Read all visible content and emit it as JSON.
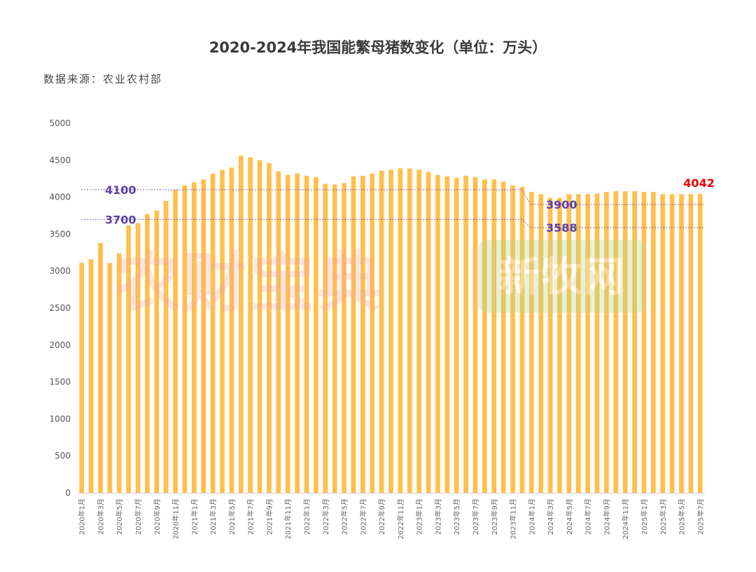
{
  "chart_data": {
    "type": "bar",
    "title": "2020-2024年我国能繁母猪数变化（单位：万头）",
    "source": "数据来源：农业农村部",
    "ylim": [
      0,
      5000
    ],
    "yticks": [
      0,
      500,
      1000,
      1500,
      2000,
      2500,
      3000,
      3500,
      4000,
      4500,
      5000
    ],
    "categories": [
      "2020年1月",
      "2020年2月",
      "2020年3月",
      "2020年4月",
      "2020年5月",
      "2020年6月",
      "2020年7月",
      "2020年8月",
      "2020年9月",
      "2020年10月",
      "2020年11月",
      "2020年12月",
      "2021年1月",
      "2021年2月",
      "2021年3月",
      "2021年4月",
      "2021年5月",
      "2021年6月",
      "2021年7月",
      "2021年8月",
      "2021年9月",
      "2021年10月",
      "2021年11月",
      "2021年12月",
      "2022年1月",
      "2022年2月",
      "2022年3月",
      "2022年4月",
      "2022年5月",
      "2022年6月",
      "2022年7月",
      "2022年8月",
      "2022年9月",
      "2022年10月",
      "2022年11月",
      "2022年12月",
      "2023年1月",
      "2023年2月",
      "2023年3月",
      "2023年4月",
      "2023年5月",
      "2023年6月",
      "2023年7月",
      "2023年8月",
      "2023年9月",
      "2023年10月",
      "2023年11月",
      "2023年12月",
      "2024年1月",
      "2024年2月",
      "2024年3月",
      "2024年4月",
      "2024年5月",
      "2024年6月",
      "2024年7月",
      "2024年8月",
      "2024年9月",
      "2024年10月",
      "2024年11月",
      "2024年12月",
      "2025年1月",
      "2025年2月",
      "2025年3月",
      "2025年4月",
      "2025年5月",
      "2025年6月",
      "2025年7月"
    ],
    "values": [
      3110,
      3160,
      3380,
      3110,
      3240,
      3620,
      3650,
      3770,
      3820,
      3950,
      4100,
      4160,
      4200,
      4240,
      4320,
      4370,
      4400,
      4560,
      4540,
      4500,
      4460,
      4350,
      4300,
      4320,
      4290,
      4270,
      4180,
      4170,
      4190,
      4280,
      4290,
      4320,
      4360,
      4370,
      4390,
      4390,
      4370,
      4340,
      4300,
      4280,
      4260,
      4290,
      4270,
      4240,
      4240,
      4210,
      4160,
      4140,
      4070,
      4040,
      3990,
      3990,
      4040,
      4040,
      4040,
      4050,
      4070,
      4080,
      4080,
      4080,
      4070,
      4070,
      4040,
      4040,
      4040,
      4040,
      4042
    ],
    "bar_color": "#ffbf4d",
    "reference_lines": [
      {
        "label": "4100",
        "value": 4100,
        "color": "#5b3fa6"
      },
      {
        "label": "3700",
        "value": 3700,
        "color": "#5b3fa6"
      },
      {
        "label": "3900",
        "value": 3900,
        "color": "#5b3fa6"
      },
      {
        "label": "3588",
        "value": 3588,
        "color": "#5b3fa6"
      }
    ],
    "last_label": {
      "text": "4042",
      "color": "#e60000"
    }
  },
  "watermarks": {
    "left": "农财宝典",
    "right": "新牧网"
  }
}
